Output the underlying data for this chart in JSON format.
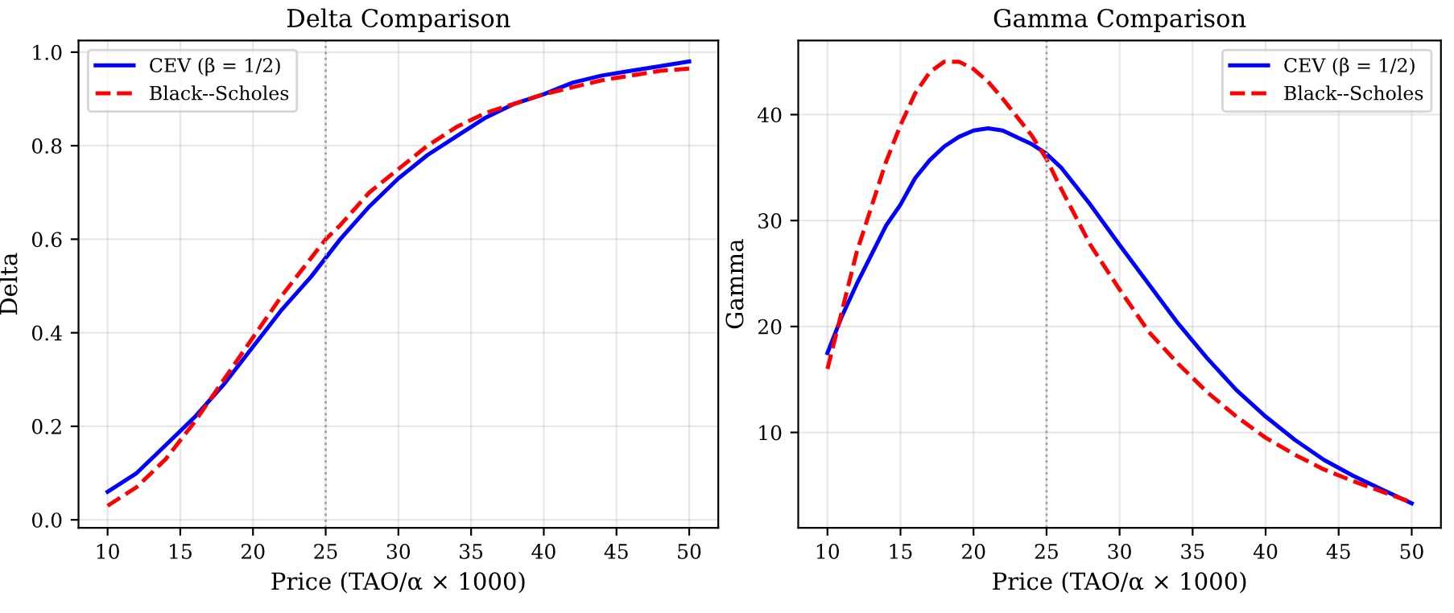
{
  "chart_data": [
    {
      "type": "line",
      "title": "Delta Comparison",
      "xlabel": "Price (TAO/α × 1000)",
      "ylabel": "Delta",
      "x": [
        10,
        12,
        14,
        15,
        16,
        18,
        20,
        22,
        24,
        25,
        26,
        28,
        30,
        32,
        34,
        36,
        38,
        40,
        42,
        44,
        46,
        48,
        50
      ],
      "series": [
        {
          "name": "CEV (β = 1/2)",
          "color": "#0000ff",
          "line_style": "solid",
          "values": [
            0.06,
            0.1,
            0.16,
            0.19,
            0.22,
            0.29,
            0.37,
            0.45,
            0.52,
            0.56,
            0.6,
            0.67,
            0.73,
            0.78,
            0.82,
            0.86,
            0.89,
            0.91,
            0.935,
            0.95,
            0.96,
            0.97,
            0.98
          ]
        },
        {
          "name": "Black--Scholes",
          "color": "#ff0000",
          "line_style": "dashed",
          "values": [
            0.03,
            0.07,
            0.13,
            0.17,
            0.21,
            0.3,
            0.39,
            0.48,
            0.56,
            0.6,
            0.63,
            0.7,
            0.75,
            0.8,
            0.84,
            0.87,
            0.89,
            0.91,
            0.925,
            0.94,
            0.95,
            0.96,
            0.965
          ]
        }
      ],
      "xlim": [
        8,
        52
      ],
      "xticks": [
        10,
        15,
        20,
        25,
        30,
        35,
        40,
        45,
        50
      ],
      "ylim": [
        -0.017,
        1.025
      ],
      "yticks": [
        {
          "value": 0,
          "label": "0.0"
        },
        0.2,
        0.4,
        0.6,
        0.8,
        {
          "value": 1,
          "label": "1.0"
        }
      ],
      "ref_lines": [
        {
          "axis": "x",
          "value": 25,
          "color": "#a0a0a0",
          "line_style": "dotted"
        }
      ],
      "grid": true,
      "legend": "top left",
      "marker": "none"
    },
    {
      "type": "line",
      "title": "Gamma Comparison",
      "xlabel": "Price (TAO/α × 1000)",
      "ylabel": "Gamma",
      "x": [
        10,
        11,
        12,
        14,
        15,
        16,
        17,
        18,
        19,
        20,
        21,
        22,
        24,
        25,
        26,
        28,
        30,
        32,
        34,
        36,
        38,
        40,
        42,
        44,
        46,
        48,
        50
      ],
      "series": [
        {
          "name": "CEV (β = 1/2)",
          "color": "#0000ff",
          "line_style": "solid",
          "values": [
            17.5,
            21,
            24,
            29.5,
            31.5,
            34,
            35.7,
            37,
            37.9,
            38.5,
            38.7,
            38.5,
            37.2,
            36.3,
            35,
            31.5,
            27.7,
            24,
            20.3,
            17,
            14,
            11.5,
            9.3,
            7.4,
            5.9,
            4.6,
            3.3
          ]
        },
        {
          "name": "Black--Scholes",
          "color": "#ff0000",
          "line_style": "dashed",
          "values": [
            16,
            21.5,
            27,
            35.5,
            39,
            42,
            44,
            45,
            45,
            44.3,
            43.1,
            41.5,
            38,
            35.8,
            33,
            27.7,
            23.5,
            19.5,
            16.5,
            13.8,
            11.5,
            9.5,
            7.9,
            6.5,
            5.4,
            4.4,
            3.4
          ]
        }
      ],
      "xlim": [
        8,
        52
      ],
      "xticks": [
        10,
        15,
        20,
        25,
        30,
        35,
        40,
        45,
        50
      ],
      "ylim": [
        1.0,
        47.0
      ],
      "yticks": [
        10,
        20,
        30,
        40
      ],
      "ref_lines": [
        {
          "axis": "x",
          "value": 25,
          "color": "#a0a0a0",
          "line_style": "dotted"
        }
      ],
      "grid": true,
      "legend": "top right",
      "marker": "none"
    }
  ]
}
